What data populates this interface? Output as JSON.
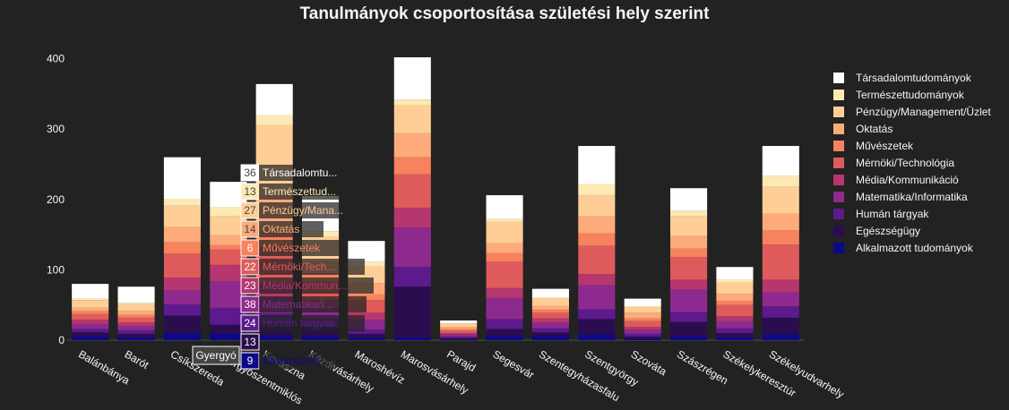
{
  "chart_data": {
    "type": "bar",
    "barmode": "stack",
    "title": "Tanulmányok csoportosítása születési hely szerint",
    "xlabel": "",
    "ylabel": "",
    "ylim": [
      0,
      430
    ],
    "yticks": [
      0,
      100,
      200,
      300,
      400
    ],
    "grid": false,
    "legend_position": "right",
    "categories": [
      "Balánbánya",
      "Barót",
      "Csíkszereda",
      "Gyergyószentmiklós",
      "Kovászna",
      "Kézdivásárhely",
      "Maroshévíz",
      "Marosvásárhely",
      "Parajd",
      "Segesvár",
      "Szentegyházasfalu",
      "Szentgyörgy",
      "Szováta",
      "Szászrégen",
      "Székelykeresztúr",
      "Székelyudvarhely"
    ],
    "series": [
      {
        "name": "Alkalmazott tudományok",
        "color": "#0d0887",
        "values": [
          5,
          4,
          10,
          9,
          6,
          5,
          3,
          4,
          1,
          6,
          6,
          8,
          2,
          6,
          4,
          8
        ]
      },
      {
        "name": "Egészségügy",
        "color": "#2a0d4f",
        "values": [
          6,
          5,
          25,
          13,
          17,
          14,
          6,
          72,
          2,
          10,
          5,
          22,
          3,
          20,
          6,
          24
        ]
      },
      {
        "name": "Humán tárgyak",
        "color": "#5c1a8c",
        "values": [
          5,
          5,
          16,
          24,
          15,
          12,
          6,
          28,
          2,
          14,
          6,
          14,
          4,
          14,
          7,
          16
        ]
      },
      {
        "name": "Matematika/Informatika",
        "color": "#8e2a8e",
        "values": [
          7,
          6,
          20,
          38,
          22,
          14,
          14,
          56,
          3,
          30,
          8,
          34,
          6,
          32,
          10,
          20
        ]
      },
      {
        "name": "Média/Kommunikáció",
        "color": "#b6376f",
        "values": [
          6,
          5,
          18,
          23,
          22,
          12,
          10,
          28,
          2,
          14,
          6,
          16,
          4,
          14,
          7,
          18
        ]
      },
      {
        "name": "Mérnöki/Technológia",
        "color": "#df5b5b",
        "values": [
          8,
          7,
          34,
          22,
          50,
          26,
          18,
          48,
          4,
          38,
          8,
          40,
          8,
          32,
          16,
          50
        ]
      },
      {
        "name": "Művészetek",
        "color": "#f7825e",
        "values": [
          4,
          4,
          16,
          6,
          24,
          12,
          8,
          24,
          2,
          12,
          4,
          18,
          4,
          12,
          6,
          20
        ]
      },
      {
        "name": "Oktatás",
        "color": "#fdab7b",
        "values": [
          5,
          5,
          22,
          14,
          50,
          16,
          16,
          34,
          3,
          14,
          6,
          24,
          8,
          18,
          10,
          24
        ]
      },
      {
        "name": "Pénzügy/Management/Üzlet",
        "color": "#fece96",
        "values": [
          11,
          10,
          30,
          27,
          100,
          36,
          24,
          40,
          4,
          30,
          10,
          30,
          8,
          28,
          16,
          38
        ]
      },
      {
        "name": "Természettudományok",
        "color": "#fde9b4",
        "values": [
          2,
          2,
          10,
          13,
          14,
          8,
          6,
          8,
          1,
          4,
          2,
          16,
          2,
          8,
          4,
          16
        ]
      },
      {
        "name": "Társadalomtudományok",
        "color": "#ffffff",
        "values": [
          21,
          23,
          59,
          36,
          44,
          50,
          30,
          60,
          4,
          34,
          12,
          54,
          10,
          32,
          18,
          42
        ]
      }
    ],
    "hover": {
      "category_label": "Gyergyó",
      "items": [
        {
          "value": "36",
          "label": "Társadalomtu..."
        },
        {
          "value": "13",
          "label": "Természettud..."
        },
        {
          "value": "27",
          "label": "Pénzügy/Mana..."
        },
        {
          "value": "14",
          "label": "Oktatás"
        },
        {
          "value": "6",
          "label": "Művészetek"
        },
        {
          "value": "22",
          "label": "Mérnöki/Tech..."
        },
        {
          "value": "23",
          "label": "Média/Kommun..."
        },
        {
          "value": "38",
          "label": "Matematika/I..."
        },
        {
          "value": "24",
          "label": "Humán tárgyak"
        },
        {
          "value": "13",
          "label": ""
        },
        {
          "value": "9",
          "label": "Alkalmazott..."
        }
      ]
    }
  }
}
